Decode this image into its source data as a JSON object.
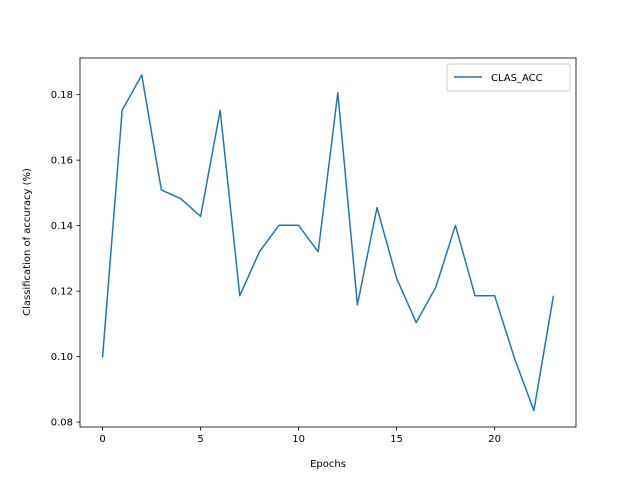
{
  "chart_data": {
    "type": "line",
    "title": "",
    "xlabel": "Epochs",
    "ylabel": "Classification of accuracy (%)",
    "xlim": [
      -1.15,
      24.15
    ],
    "ylim": [
      0.0785,
      0.1912
    ],
    "xticks": [
      0,
      5,
      10,
      15,
      20
    ],
    "xtick_labels": [
      "0",
      "5",
      "10",
      "15",
      "20"
    ],
    "yticks": [
      0.08,
      0.1,
      0.12,
      0.14,
      0.16,
      0.18
    ],
    "ytick_labels": [
      "0.08",
      "0.10",
      "0.12",
      "0.14",
      "0.16",
      "0.18"
    ],
    "grid": false,
    "legend_position": "top-right",
    "series": [
      {
        "name": "CLAS_ACC",
        "color": "#1f77b4",
        "x": [
          0,
          1,
          2,
          3,
          4,
          5,
          6,
          7,
          8,
          9,
          10,
          11,
          12,
          13,
          14,
          15,
          16,
          17,
          18,
          19,
          20,
          21,
          22,
          23
        ],
        "y": [
          0.0997,
          0.1752,
          0.186,
          0.1509,
          0.1482,
          0.1428,
          0.1752,
          0.1186,
          0.132,
          0.1401,
          0.1401,
          0.132,
          0.1806,
          0.1158,
          0.1455,
          0.1239,
          0.1104,
          0.1212,
          0.1401,
          0.1186,
          0.1186,
          0.0997,
          0.0835,
          0.1186
        ]
      }
    ]
  }
}
